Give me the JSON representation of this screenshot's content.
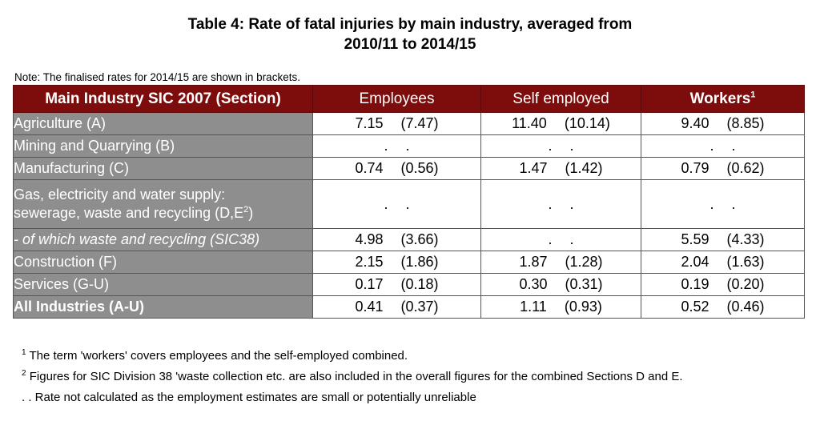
{
  "title_line1": "Table 4: Rate of fatal injuries by main industry, averaged from",
  "title_line2": "2010/11 to 2014/15",
  "note": "Note: The finalised rates for 2014/15 are shown in brackets.",
  "headers": {
    "industry": "Main Industry SIC 2007 (Section)",
    "employees": "Employees",
    "self_employed": "Self employed",
    "workers": "Workers",
    "workers_sup": "1"
  },
  "rows": [
    {
      "label": "Agriculture (A)",
      "emp": [
        "7.15",
        "(7.47)"
      ],
      "self": [
        "11.40",
        "(10.14)"
      ],
      "work": [
        "9.40",
        "(8.85)"
      ]
    },
    {
      "label": "Mining and Quarrying (B)",
      "emp": [
        ".",
        "."
      ],
      "self": [
        ".",
        "."
      ],
      "work": [
        ".",
        "."
      ]
    },
    {
      "label": "Manufacturing (C)",
      "emp": [
        "0.74",
        "(0.56)"
      ],
      "self": [
        "1.47",
        "(1.42)"
      ],
      "work": [
        "0.79",
        "(0.62)"
      ]
    },
    {
      "label_line1": "Gas, electricity and water supply:",
      "label_line2": "sewerage, waste and recycling (D,E",
      "label_sup": "2",
      "label_close": ")",
      "emp": [
        ".",
        "."
      ],
      "self": [
        ".",
        "."
      ],
      "work": [
        ".",
        "."
      ]
    },
    {
      "label": "- of which waste and recycling (SIC38)",
      "emp": [
        "4.98",
        "(3.66)"
      ],
      "self": [
        ".",
        "."
      ],
      "work": [
        "5.59",
        "(4.33)"
      ]
    },
    {
      "label": "Construction (F)",
      "emp": [
        "2.15",
        "(1.86)"
      ],
      "self": [
        "1.87",
        "(1.28)"
      ],
      "work": [
        "2.04",
        "(1.63)"
      ]
    },
    {
      "label": "Services (G-U)",
      "emp": [
        "0.17",
        "(0.18)"
      ],
      "self": [
        "0.30",
        "(0.31)"
      ],
      "work": [
        "0.19",
        "(0.20)"
      ]
    },
    {
      "label": "All Industries (A-U)",
      "emp": [
        "0.41",
        "(0.37)"
      ],
      "self": [
        "1.11",
        "(0.93)"
      ],
      "work": [
        "0.52",
        "(0.46)"
      ]
    }
  ],
  "footnotes": {
    "fn1_sup": "1",
    "fn1": " The term 'workers' covers employees and the self-employed combined.",
    "fn2_sup": "2",
    "fn2": " Figures for SIC Division 38 'waste collection etc. are also included in the overall figures for the combined Sections D and E.",
    "fn3": ". . Rate not calculated as the employment estimates are small or potentially unreliable"
  },
  "colors": {
    "header_bg": "#7d0c0c",
    "label_bg": "#8e8e8e"
  }
}
